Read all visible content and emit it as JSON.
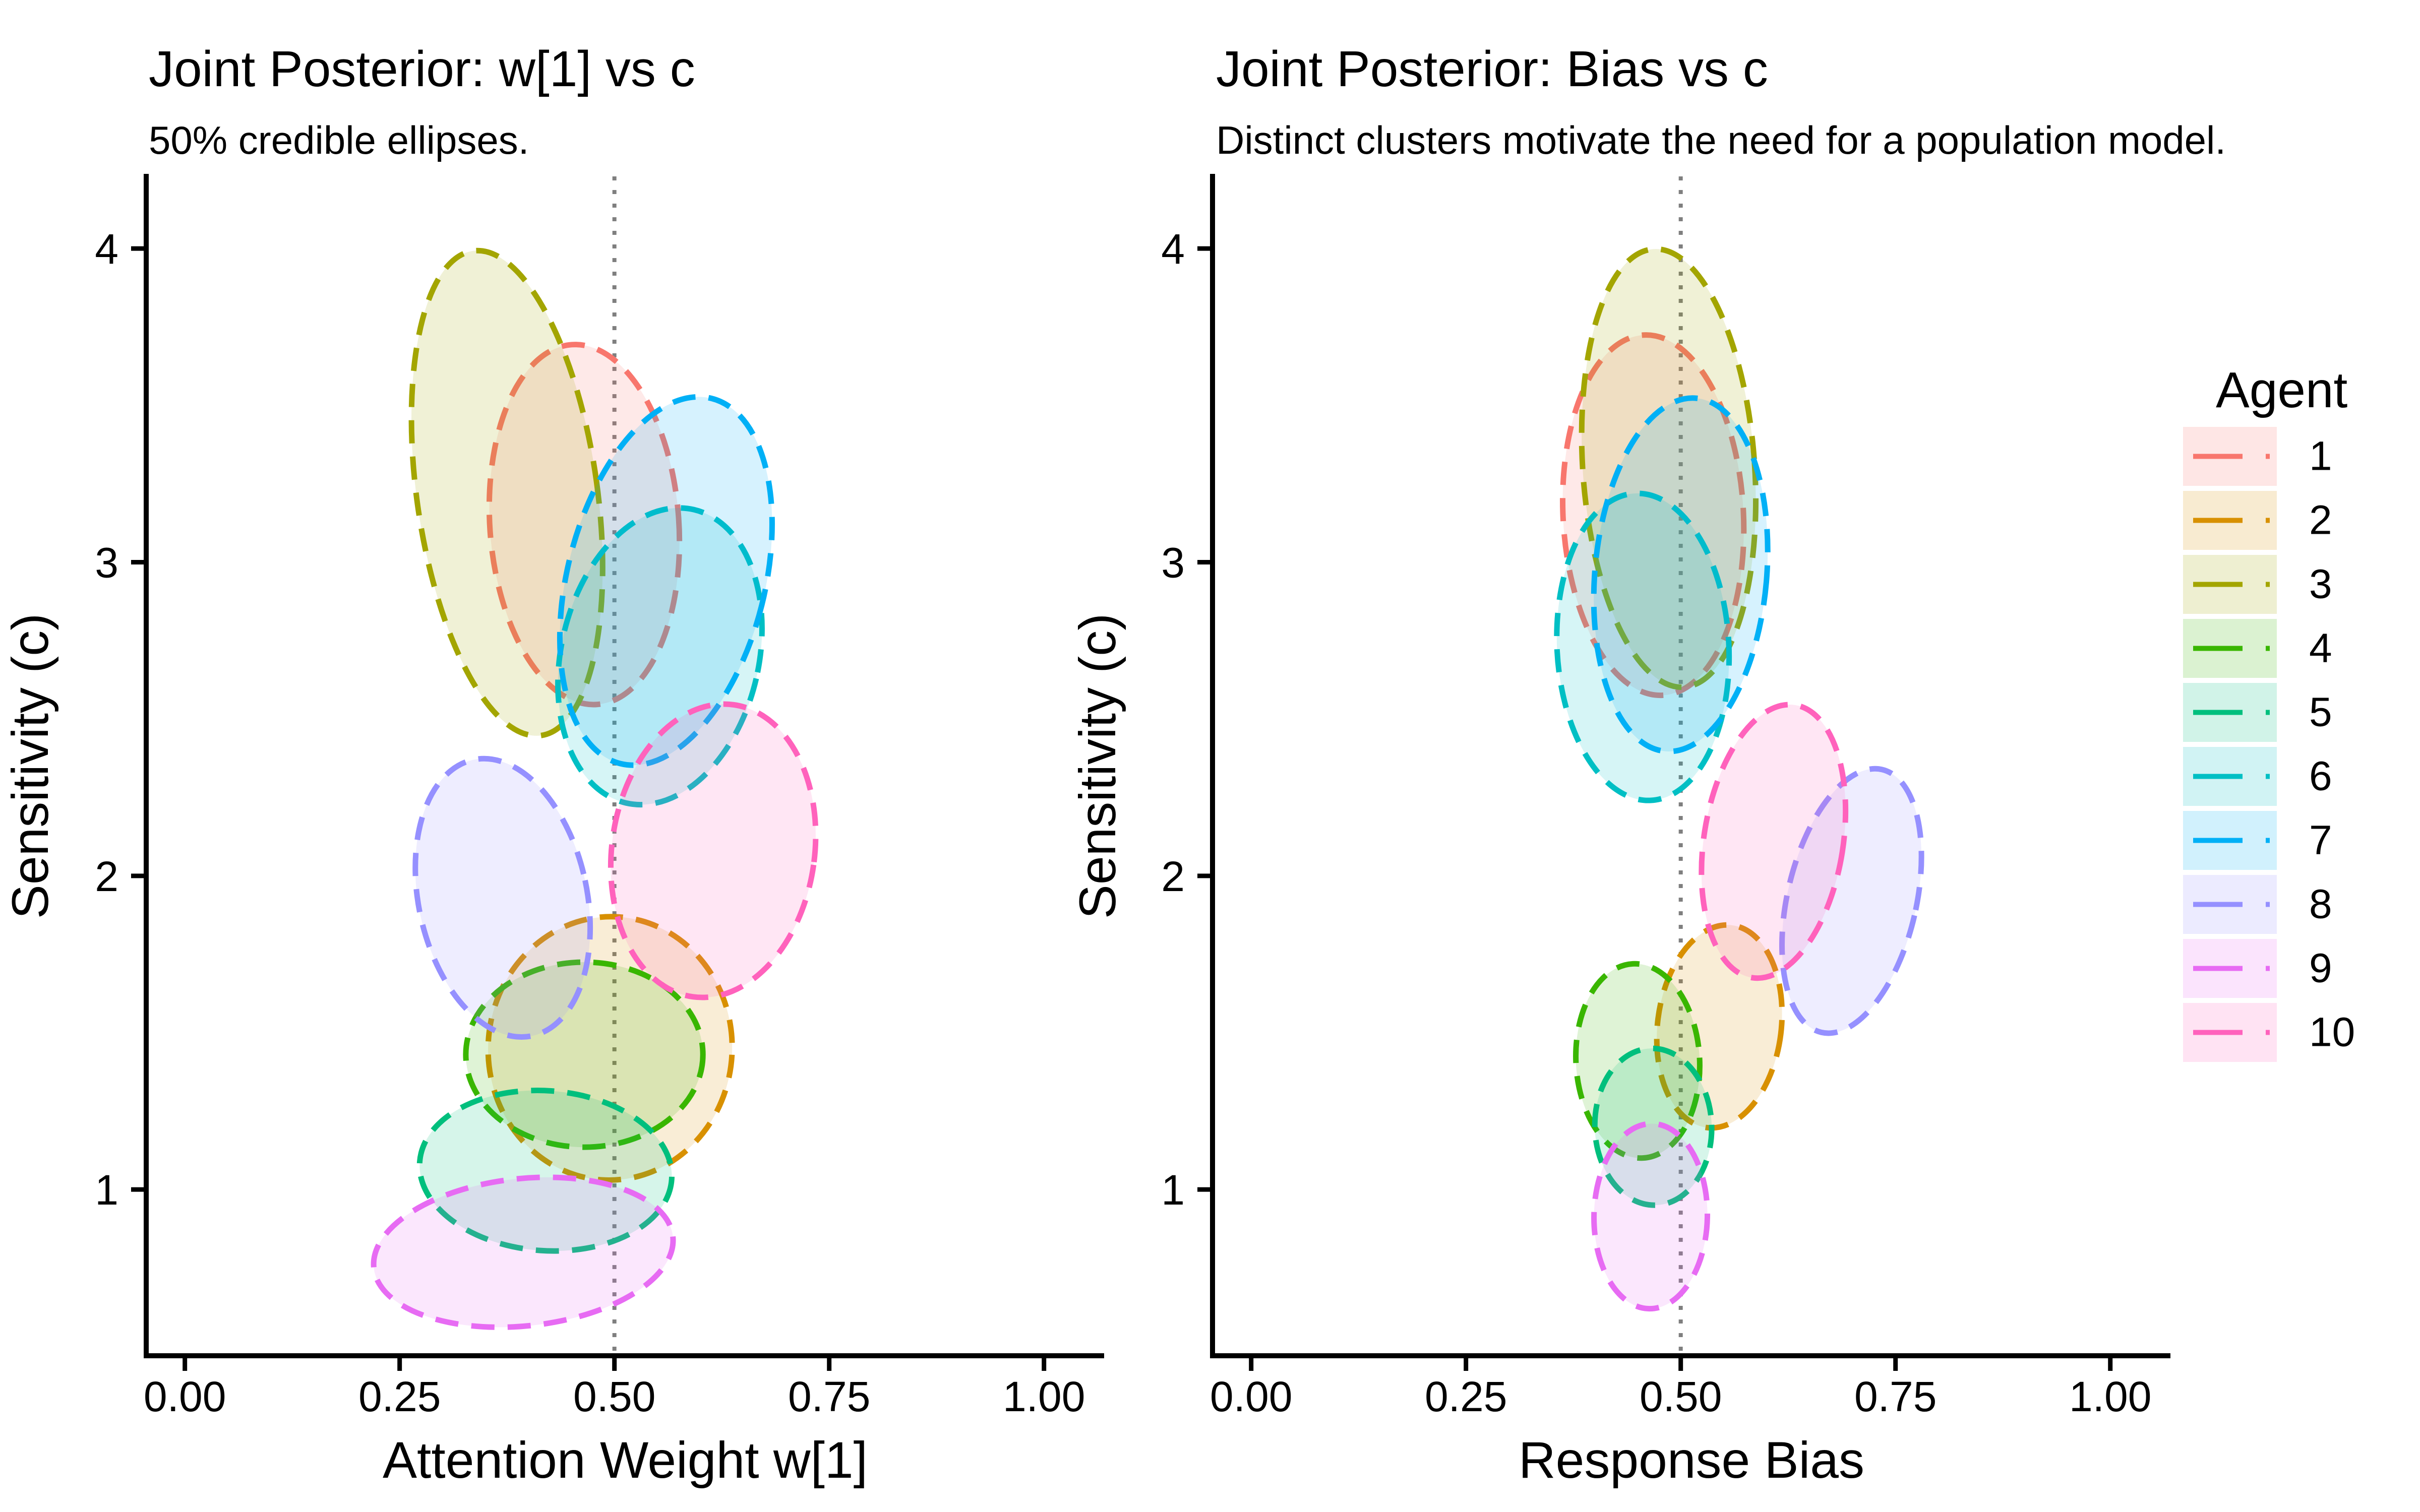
{
  "figure": {
    "background": "#FFFFFF"
  },
  "chart_data": {
    "type": "scatter",
    "subtype": "credible-ellipses",
    "panels": [
      {
        "title": "Joint Posterior: w[1] vs c",
        "subtitle": "50% credible ellipses.",
        "xlabel": "Attention Weight w[1]",
        "ylabel": "Sensitivity (c)",
        "xlim": [
          -0.045,
          1.07
        ],
        "ylim": [
          0.47,
          4.23
        ],
        "grid": "off",
        "vline_x": 0.5,
        "xticks": [
          {
            "value": 0,
            "label": "0.00"
          },
          {
            "value": 0.25,
            "label": "0.25"
          },
          {
            "value": 0.5,
            "label": "0.50"
          },
          {
            "value": 0.75,
            "label": "0.75"
          },
          {
            "value": 1,
            "label": "1.00"
          }
        ],
        "yticks": [
          {
            "value": 1,
            "label": "1"
          },
          {
            "value": 2,
            "label": "2"
          },
          {
            "value": 3,
            "label": "3"
          },
          {
            "value": 4,
            "label": "4"
          }
        ],
        "ellipses": [
          {
            "agent": "1",
            "cx": 0.465,
            "cy": 3.12,
            "rx": 0.11,
            "ry": 0.575,
            "angle": -4
          },
          {
            "agent": "2",
            "cx": 0.495,
            "cy": 1.45,
            "rx": 0.142,
            "ry": 0.42,
            "angle": 3
          },
          {
            "agent": "3",
            "cx": 0.375,
            "cy": 3.22,
            "rx": 0.105,
            "ry": 0.78,
            "angle": -8
          },
          {
            "agent": "4",
            "cx": 0.465,
            "cy": 1.43,
            "rx": 0.138,
            "ry": 0.295,
            "angle": 0
          },
          {
            "agent": "5",
            "cx": 0.42,
            "cy": 1.06,
            "rx": 0.147,
            "ry": 0.255,
            "angle": 4
          },
          {
            "agent": "6",
            "cx": 0.553,
            "cy": 2.7,
            "rx": 0.115,
            "ry": 0.48,
            "angle": 13
          },
          {
            "agent": "7",
            "cx": 0.56,
            "cy": 2.94,
            "rx": 0.115,
            "ry": 0.6,
            "angle": 14
          },
          {
            "agent": "8",
            "cx": 0.37,
            "cy": 1.93,
            "rx": 0.098,
            "ry": 0.45,
            "angle": -12
          },
          {
            "agent": "9",
            "cx": 0.394,
            "cy": 0.8,
            "rx": 0.175,
            "ry": 0.235,
            "angle": -6
          },
          {
            "agent": "10",
            "cx": 0.615,
            "cy": 2.08,
            "rx": 0.118,
            "ry": 0.47,
            "angle": 8
          }
        ]
      },
      {
        "title": "Joint Posterior: Bias vs c",
        "subtitle": "Distinct clusters motivate the need for a population model.",
        "xlabel": "Response Bias",
        "ylabel": "Sensitivity (c)",
        "xlim": [
          -0.045,
          1.07
        ],
        "ylim": [
          0.47,
          4.23
        ],
        "grid": "off",
        "vline_x": 0.5,
        "xticks": [
          {
            "value": 0,
            "label": "0.00"
          },
          {
            "value": 0.25,
            "label": "0.25"
          },
          {
            "value": 0.5,
            "label": "0.50"
          },
          {
            "value": 0.75,
            "label": "0.75"
          },
          {
            "value": 1,
            "label": "1.00"
          }
        ],
        "yticks": [
          {
            "value": 1,
            "label": "1"
          },
          {
            "value": 2,
            "label": "2"
          },
          {
            "value": 3,
            "label": "3"
          },
          {
            "value": 4,
            "label": "4"
          }
        ],
        "ellipses": [
          {
            "agent": "1",
            "cx": 0.468,
            "cy": 3.15,
            "rx": 0.105,
            "ry": 0.575,
            "angle": -3
          },
          {
            "agent": "2",
            "cx": 0.545,
            "cy": 1.52,
            "rx": 0.072,
            "ry": 0.325,
            "angle": 7
          },
          {
            "agent": "3",
            "cx": 0.486,
            "cy": 3.3,
            "rx": 0.1,
            "ry": 0.7,
            "angle": -4
          },
          {
            "agent": "4",
            "cx": 0.45,
            "cy": 1.41,
            "rx": 0.072,
            "ry": 0.31,
            "angle": -3
          },
          {
            "agent": "5",
            "cx": 0.468,
            "cy": 1.2,
            "rx": 0.068,
            "ry": 0.25,
            "angle": -2
          },
          {
            "agent": "6",
            "cx": 0.456,
            "cy": 2.73,
            "rx": 0.1,
            "ry": 0.49,
            "angle": -3
          },
          {
            "agent": "7",
            "cx": 0.5,
            "cy": 2.96,
            "rx": 0.1,
            "ry": 0.565,
            "angle": 5
          },
          {
            "agent": "8",
            "cx": 0.699,
            "cy": 1.92,
            "rx": 0.075,
            "ry": 0.43,
            "angle": 13
          },
          {
            "agent": "9",
            "cx": 0.465,
            "cy": 0.915,
            "rx": 0.066,
            "ry": 0.295,
            "angle": 1
          },
          {
            "agent": "10",
            "cx": 0.608,
            "cy": 2.11,
            "rx": 0.081,
            "ry": 0.44,
            "angle": 9
          }
        ]
      }
    ],
    "legend": {
      "title": "Agent",
      "position": "right",
      "entries": [
        {
          "label": "1",
          "color": "#F8766D"
        },
        {
          "label": "2",
          "color": "#D89000"
        },
        {
          "label": "3",
          "color": "#A3A500"
        },
        {
          "label": "4",
          "color": "#39B600"
        },
        {
          "label": "5",
          "color": "#00BF7D"
        },
        {
          "label": "6",
          "color": "#00BFC4"
        },
        {
          "label": "7",
          "color": "#00B0F6"
        },
        {
          "label": "8",
          "color": "#9590FF"
        },
        {
          "label": "9",
          "color": "#E76BF3"
        },
        {
          "label": "10",
          "color": "#FF62BC"
        }
      ]
    },
    "style": {
      "vline_color": "#7F7F7F",
      "axis_color": "#000000",
      "text_color": "#000000",
      "fill_opacity": 0.16
    }
  }
}
